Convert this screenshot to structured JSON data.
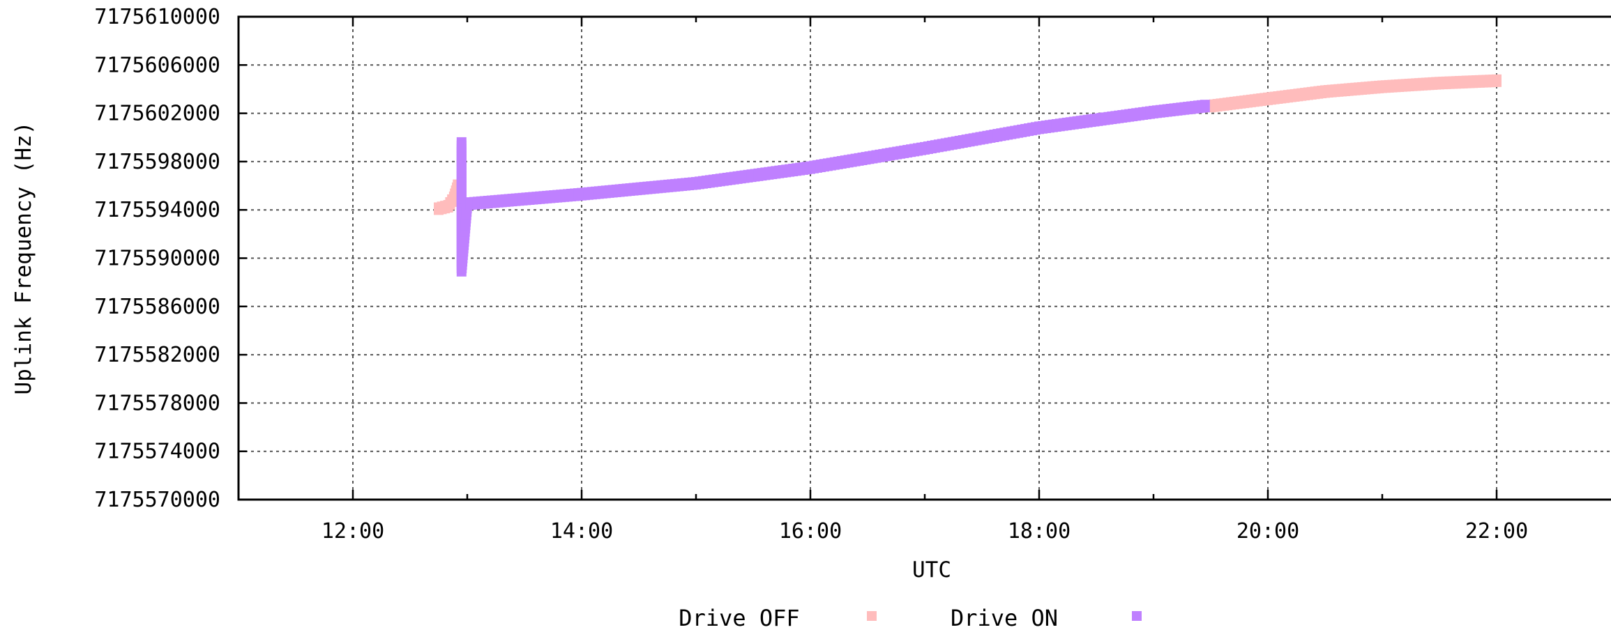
{
  "chart_data": {
    "type": "scatter",
    "title": "",
    "xlabel": "UTC",
    "ylabel": "Uplink Frequency (Hz)",
    "xlim": [
      "11:00",
      "23:00"
    ],
    "ylim": [
      7175570000,
      7175610000
    ],
    "x_ticks": [
      "12:00",
      "14:00",
      "16:00",
      "18:00",
      "20:00",
      "22:00"
    ],
    "y_ticks": [
      "7175570000",
      "7175574000",
      "7175578000",
      "7175582000",
      "7175586000",
      "7175590000",
      "7175594000",
      "7175598000",
      "7175602000",
      "7175606000",
      "7175610000"
    ],
    "grid": true,
    "legend_position": "bottom",
    "series": [
      {
        "name": "Drive OFF",
        "color": "#ffbcbc",
        "points": [
          {
            "x": "12:45",
            "y": 7175594100
          },
          {
            "x": "12:50",
            "y": 7175594300
          },
          {
            "x": "12:53",
            "y": 7175595000
          },
          {
            "x": "12:55",
            "y": 7175596000
          },
          {
            "x": "19:30",
            "y": 7175602600
          },
          {
            "x": "20:00",
            "y": 7175603200
          },
          {
            "x": "20:30",
            "y": 7175603800
          },
          {
            "x": "21:00",
            "y": 7175604200
          },
          {
            "x": "21:30",
            "y": 7175604500
          },
          {
            "x": "22:00",
            "y": 7175604700
          }
        ]
      },
      {
        "name": "Drive ON",
        "color": "#bf80ff",
        "points": [
          {
            "x": "12:57",
            "y": 7175599500
          },
          {
            "x": "12:57",
            "y": 7175597000
          },
          {
            "x": "12:57",
            "y": 7175594500
          },
          {
            "x": "12:57",
            "y": 7175591800
          },
          {
            "x": "12:57",
            "y": 7175589000
          },
          {
            "x": "13:00",
            "y": 7175594500
          },
          {
            "x": "14:00",
            "y": 7175595300
          },
          {
            "x": "15:00",
            "y": 7175596200
          },
          {
            "x": "16:00",
            "y": 7175597500
          },
          {
            "x": "17:00",
            "y": 7175599100
          },
          {
            "x": "18:00",
            "y": 7175600800
          },
          {
            "x": "19:00",
            "y": 7175602100
          },
          {
            "x": "19:27",
            "y": 7175602600
          }
        ]
      }
    ]
  }
}
